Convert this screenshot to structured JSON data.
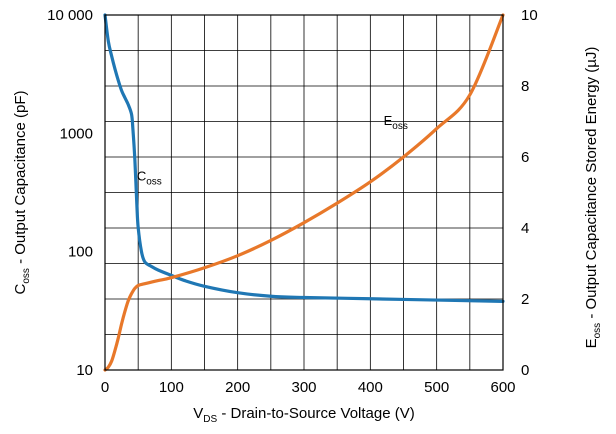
{
  "chart_data": {
    "type": "line",
    "title": "",
    "xlabel": {
      "main": "V",
      "sub": "DS",
      "rest": " - Drain-to-Source Voltage (V)"
    },
    "ylabel_left": {
      "main": "C",
      "sub": "oss",
      "rest": " - Output Capacitance (pF)"
    },
    "ylabel_right": {
      "main": "E",
      "sub": "oss",
      "rest": " - Output Capacitance Stored Energy (µJ)"
    },
    "xlim": [
      0,
      600
    ],
    "ylim_left": [
      10,
      10000
    ],
    "ylim_right": [
      0,
      10
    ],
    "left_scale": "log",
    "right_scale": "linear",
    "grid": true,
    "x_ticks": [
      0,
      100,
      200,
      300,
      400,
      500,
      600
    ],
    "x_tick_labels": [
      "0",
      "100",
      "200",
      "300",
      "400",
      "500",
      "600"
    ],
    "y_left_ticks": [
      10,
      100,
      1000,
      10000
    ],
    "y_left_tick_labels": [
      "10",
      "100",
      "1000",
      "10 000"
    ],
    "y_right_ticks": [
      0,
      2,
      4,
      6,
      8,
      10
    ],
    "y_right_tick_labels": [
      "0",
      "2",
      "4",
      "6",
      "8",
      "10"
    ],
    "series": [
      {
        "name": {
          "main": "C",
          "sub": "oss"
        },
        "axis": "left",
        "color": "#1f77b4",
        "x": [
          0,
          5,
          10,
          15,
          20,
          25,
          30,
          35,
          40,
          42,
          45,
          48,
          50,
          55,
          60,
          70,
          80,
          100,
          120,
          150,
          200,
          250,
          300,
          400,
          500,
          600
        ],
        "y": [
          10000,
          6000,
          4500,
          3500,
          2800,
          2300,
          2000,
          1750,
          1450,
          1100,
          600,
          250,
          160,
          100,
          82,
          75,
          70,
          63,
          57,
          51,
          45,
          42,
          41,
          40,
          39,
          38
        ]
      },
      {
        "name": {
          "main": "E",
          "sub": "oss"
        },
        "axis": "right",
        "color": "#e8782a",
        "x": [
          0,
          5,
          10,
          15,
          20,
          25,
          30,
          35,
          40,
          45,
          50,
          60,
          80,
          100,
          150,
          200,
          250,
          300,
          350,
          400,
          450,
          500,
          550,
          600
        ],
        "y": [
          0,
          0.08,
          0.25,
          0.55,
          0.9,
          1.3,
          1.65,
          1.95,
          2.15,
          2.3,
          2.38,
          2.43,
          2.52,
          2.6,
          2.88,
          3.22,
          3.65,
          4.15,
          4.7,
          5.3,
          6.0,
          6.8,
          7.75,
          10.0
        ]
      }
    ],
    "annotations": [
      {
        "series": 0,
        "x": 48,
        "y": 400
      },
      {
        "series": 1,
        "x": 420,
        "y": 6.9
      }
    ]
  }
}
